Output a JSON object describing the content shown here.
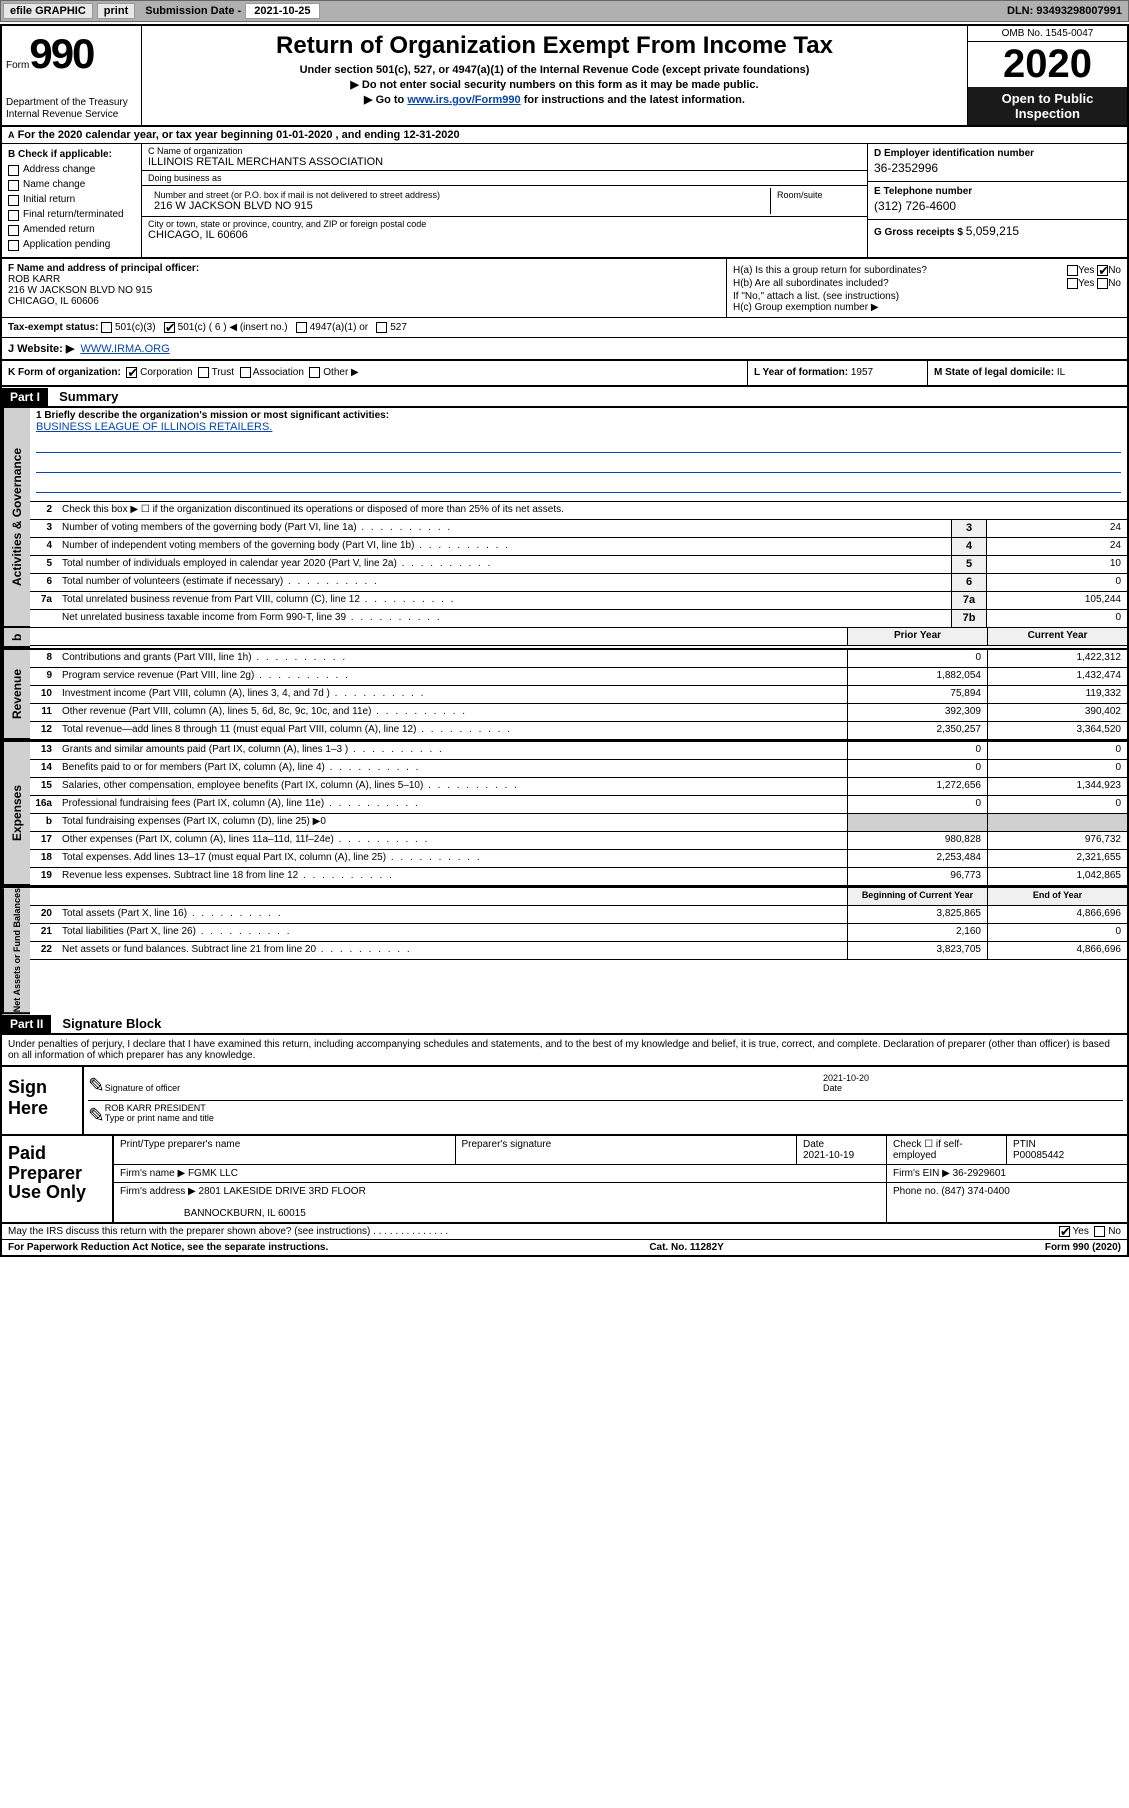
{
  "topbar": {
    "efile_label": "efile GRAPHIC",
    "print_label": "print",
    "submission_label": "Submission Date -",
    "submission_date": "2021-10-25",
    "dln_label": "DLN:",
    "dln": "93493298007991"
  },
  "header": {
    "form_word": "Form",
    "form_number": "990",
    "title": "Return of Organization Exempt From Income Tax",
    "subtitle": "Under section 501(c), 527, or 4947(a)(1) of the Internal Revenue Code (except private foundations)",
    "no_ssn": "▶ Do not enter social security numbers on this form as it may be made public.",
    "goto_prefix": "▶ Go to ",
    "goto_link": "www.irs.gov/Form990",
    "goto_suffix": " for instructions and the latest information.",
    "department": "Department of the Treasury\nInternal Revenue Service",
    "omb": "OMB No. 1545-0047",
    "year": "2020",
    "open_public": "Open to Public Inspection"
  },
  "lineA": {
    "text": "For the 2020 calendar year, or tax year beginning 01-01-2020   , and ending 12-31-2020",
    "prefix": "A"
  },
  "colB": {
    "heading": "B Check if applicable:",
    "items": [
      "Address change",
      "Name change",
      "Initial return",
      "Final return/terminated",
      "Amended return",
      "Application pending"
    ]
  },
  "colC": {
    "name_label": "C Name of organization",
    "name": "ILLINOIS RETAIL MERCHANTS ASSOCIATION",
    "dba_label": "Doing business as",
    "dba": "",
    "street_label": "Number and street (or P.O. box if mail is not delivered to street address)",
    "room_label": "Room/suite",
    "street": "216 W JACKSON BLVD NO 915",
    "city_label": "City or town, state or province, country, and ZIP or foreign postal code",
    "city": "CHICAGO, IL  60606"
  },
  "colD": {
    "ein_label": "D Employer identification number",
    "ein": "36-2352996",
    "tel_label": "E Telephone number",
    "tel": "(312) 726-4600",
    "gross_label": "G Gross receipts $",
    "gross": "5,059,215"
  },
  "rowF": {
    "label": "F  Name and address of principal officer:",
    "name": "ROB KARR",
    "addr1": "216 W JACKSON BLVD NO 915",
    "addr2": "CHICAGO, IL  60606"
  },
  "rowH": {
    "ha_label": "H(a)  Is this a group return for subordinates?",
    "hb_label": "H(b)  Are all subordinates included?",
    "hb_note": "If \"No,\" attach a list. (see instructions)",
    "hc_label": "H(c)  Group exemption number ▶",
    "yes": "Yes",
    "no": "No"
  },
  "rowI": {
    "label": "Tax-exempt status:",
    "opts": [
      "501(c)(3)",
      "501(c) ( 6 ) ◀ (insert no.)",
      "4947(a)(1) or",
      "527"
    ],
    "checked_index": 1
  },
  "rowJ": {
    "label": "J   Website: ▶",
    "value": "WWW.IRMA.ORG"
  },
  "rowK": {
    "label": "K Form of organization:",
    "opts": [
      "Corporation",
      "Trust",
      "Association",
      "Other ▶"
    ],
    "checked_index": 0
  },
  "rowL": {
    "label": "L Year of formation:",
    "value": "1957"
  },
  "rowM": {
    "label": "M State of legal domicile:",
    "value": "IL"
  },
  "part1": {
    "badge": "Part I",
    "title": "Summary",
    "line1_label": "1  Briefly describe the organization's mission or most significant activities:",
    "mission": "BUSINESS LEAGUE OF ILLINOIS RETAILERS.",
    "line2": "Check this box ▶ ☐  if the organization discontinued its operations or disposed of more than 25% of its net assets."
  },
  "governance_lines": [
    {
      "n": "3",
      "t": "Number of voting members of the governing body (Part VI, line 1a)",
      "rn": "3",
      "v": "24"
    },
    {
      "n": "4",
      "t": "Number of independent voting members of the governing body (Part VI, line 1b)",
      "rn": "4",
      "v": "24"
    },
    {
      "n": "5",
      "t": "Total number of individuals employed in calendar year 2020 (Part V, line 2a)",
      "rn": "5",
      "v": "10"
    },
    {
      "n": "6",
      "t": "Total number of volunteers (estimate if necessary)",
      "rn": "6",
      "v": "0"
    },
    {
      "n": "7a",
      "t": "Total unrelated business revenue from Part VIII, column (C), line 12",
      "rn": "7a",
      "v": "105,244"
    },
    {
      "n": "",
      "t": "Net unrelated business taxable income from Form 990-T, line 39",
      "rn": "7b",
      "v": "0"
    }
  ],
  "two_col_header": {
    "prior": "Prior Year",
    "current": "Current Year"
  },
  "revenue_lines": [
    {
      "n": "8",
      "t": "Contributions and grants (Part VIII, line 1h)",
      "p": "0",
      "c": "1,422,312"
    },
    {
      "n": "9",
      "t": "Program service revenue (Part VIII, line 2g)",
      "p": "1,882,054",
      "c": "1,432,474"
    },
    {
      "n": "10",
      "t": "Investment income (Part VIII, column (A), lines 3, 4, and 7d )",
      "p": "75,894",
      "c": "119,332"
    },
    {
      "n": "11",
      "t": "Other revenue (Part VIII, column (A), lines 5, 6d, 8c, 9c, 10c, and 11e)",
      "p": "392,309",
      "c": "390,402"
    },
    {
      "n": "12",
      "t": "Total revenue—add lines 8 through 11 (must equal Part VIII, column (A), line 12)",
      "p": "2,350,257",
      "c": "3,364,520"
    }
  ],
  "expense_lines": [
    {
      "n": "13",
      "t": "Grants and similar amounts paid (Part IX, column (A), lines 1–3 )",
      "p": "0",
      "c": "0"
    },
    {
      "n": "14",
      "t": "Benefits paid to or for members (Part IX, column (A), line 4)",
      "p": "0",
      "c": "0"
    },
    {
      "n": "15",
      "t": "Salaries, other compensation, employee benefits (Part IX, column (A), lines 5–10)",
      "p": "1,272,656",
      "c": "1,344,923"
    },
    {
      "n": "16a",
      "t": "Professional fundraising fees (Part IX, column (A), line 11e)",
      "p": "0",
      "c": "0"
    },
    {
      "n": "b",
      "t": "Total fundraising expenses (Part IX, column (D), line 25) ▶0",
      "p": "",
      "c": "",
      "nb": true
    },
    {
      "n": "17",
      "t": "Other expenses (Part IX, column (A), lines 11a–11d, 11f–24e)",
      "p": "980,828",
      "c": "976,732"
    },
    {
      "n": "18",
      "t": "Total expenses. Add lines 13–17 (must equal Part IX, column (A), line 25)",
      "p": "2,253,484",
      "c": "2,321,655"
    },
    {
      "n": "19",
      "t": "Revenue less expenses. Subtract line 18 from line 12",
      "p": "96,773",
      "c": "1,042,865"
    }
  ],
  "net_header": {
    "beg": "Beginning of Current Year",
    "end": "End of Year"
  },
  "net_lines": [
    {
      "n": "20",
      "t": "Total assets (Part X, line 16)",
      "p": "3,825,865",
      "c": "4,866,696"
    },
    {
      "n": "21",
      "t": "Total liabilities (Part X, line 26)",
      "p": "2,160",
      "c": "0"
    },
    {
      "n": "22",
      "t": "Net assets or fund balances. Subtract line 21 from line 20",
      "p": "3,823,705",
      "c": "4,866,696"
    }
  ],
  "vtabs": {
    "gov": "Activities & Governance",
    "rev": "Revenue",
    "exp": "Expenses",
    "net": "Net Assets or Fund Balances"
  },
  "part2": {
    "badge": "Part II",
    "title": "Signature Block",
    "perjury": "Under penalties of perjury, I declare that I have examined this return, including accompanying schedules and statements, and to the best of my knowledge and belief, it is true, correct, and complete. Declaration of preparer (other than officer) is based on all information of which preparer has any knowledge."
  },
  "sign_here": {
    "label": "Sign Here",
    "sig_officer": "Signature of officer",
    "date_label": "Date",
    "date": "2021-10-20",
    "name_title": "ROB KARR  PRESIDENT",
    "type_print": "Type or print name and title"
  },
  "paid": {
    "label": "Paid Preparer Use Only",
    "print_name_lbl": "Print/Type preparer's name",
    "prep_sig_lbl": "Preparer's signature",
    "date_lbl": "Date",
    "date": "2021-10-19",
    "check_self": "Check ☐ if self-employed",
    "ptin_lbl": "PTIN",
    "ptin": "P00085442",
    "firm_name_lbl": "Firm's name    ▶",
    "firm_name": "FGMK LLC",
    "firm_ein_lbl": "Firm's EIN ▶",
    "firm_ein": "36-2929601",
    "firm_addr_lbl": "Firm's address ▶",
    "firm_addr1": "2801 LAKESIDE DRIVE 3RD FLOOR",
    "firm_addr2": "BANNOCKBURN, IL  60015",
    "phone_lbl": "Phone no.",
    "phone": "(847) 374-0400"
  },
  "footer": {
    "discuss": "May the IRS discuss this return with the preparer shown above? (see instructions)",
    "yes": "Yes",
    "no": "No",
    "pra": "For Paperwork Reduction Act Notice, see the separate instructions.",
    "cat": "Cat. No. 11282Y",
    "form": "Form 990 (2020)"
  },
  "colors": {
    "gray_bg": "#b0b0b0",
    "lt_gray": "#d0d0d0",
    "link": "#0645ad"
  }
}
